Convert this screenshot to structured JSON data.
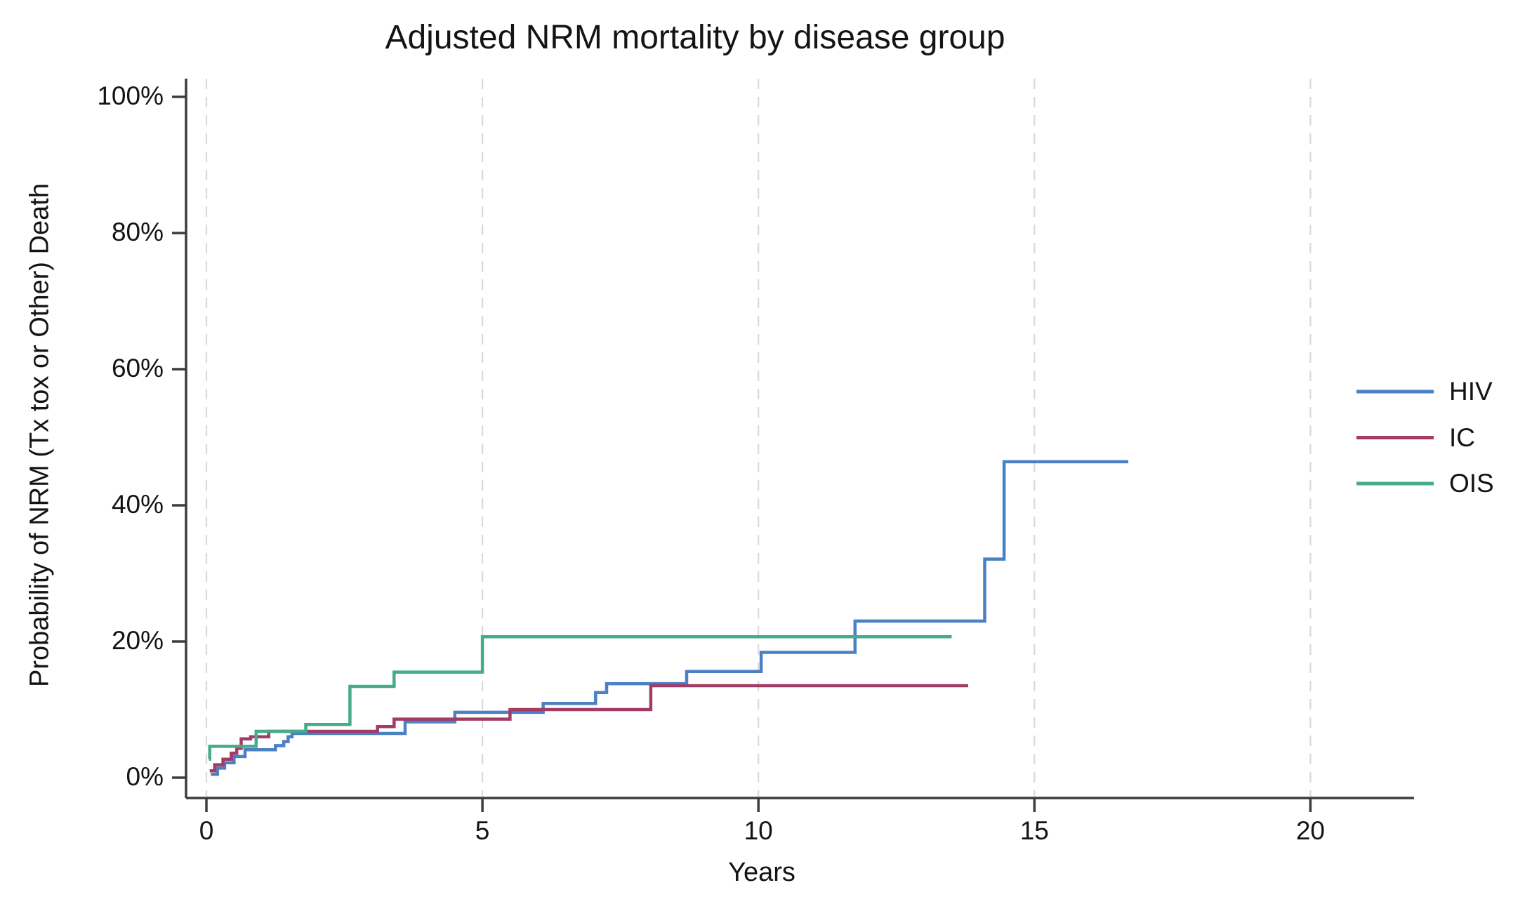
{
  "chart_data": {
    "type": "line",
    "subtype": "step",
    "title": "Adjusted NRM mortality by disease group",
    "xlabel": "Years",
    "ylabel": "Probability of NRM (Tx tox or Other) Death",
    "xlim": [
      0,
      20
    ],
    "ylim": [
      0,
      100
    ],
    "x_ticks": [
      0,
      5,
      10,
      15,
      20
    ],
    "y_ticks": [
      {
        "value": 0,
        "label": "0%"
      },
      {
        "value": 20,
        "label": "20%"
      },
      {
        "value": 40,
        "label": "40%"
      },
      {
        "value": 60,
        "label": "60%"
      },
      {
        "value": 80,
        "label": "80%"
      },
      {
        "value": 100,
        "label": "100%"
      }
    ],
    "grid": "vertical-dashed-only",
    "gridline_color": "#d9d9d9",
    "axis_color": "#3d3d3d",
    "legend_position": "right",
    "series": [
      {
        "name": "HIV",
        "color": "#4a80c4",
        "points": [
          [
            0.08,
            0.5
          ],
          [
            0.2,
            1.4
          ],
          [
            0.33,
            2.2
          ],
          [
            0.5,
            3.1
          ],
          [
            0.7,
            4.1
          ],
          [
            1.25,
            4.7
          ],
          [
            1.4,
            5.3
          ],
          [
            1.48,
            6.0
          ],
          [
            1.55,
            6.5
          ],
          [
            3.6,
            8.2
          ],
          [
            4.5,
            9.6
          ],
          [
            6.1,
            10.9
          ],
          [
            7.05,
            12.5
          ],
          [
            7.25,
            13.8
          ],
          [
            8.7,
            15.6
          ],
          [
            10.05,
            18.4
          ],
          [
            11.75,
            23.0
          ],
          [
            14.1,
            32.1
          ],
          [
            14.45,
            46.4
          ]
        ],
        "end_x": 16.7
      },
      {
        "name": "IC",
        "color": "#a23b66",
        "points": [
          [
            0.06,
            1.0
          ],
          [
            0.15,
            1.9
          ],
          [
            0.3,
            2.7
          ],
          [
            0.45,
            3.6
          ],
          [
            0.55,
            4.3
          ],
          [
            0.63,
            5.7
          ],
          [
            0.8,
            6.0
          ],
          [
            1.13,
            6.8
          ],
          [
            3.1,
            7.5
          ],
          [
            3.4,
            8.6
          ],
          [
            5.5,
            10.0
          ],
          [
            8.05,
            13.5
          ]
        ],
        "end_x": 13.8
      },
      {
        "name": "OIS",
        "color": "#45ab8a",
        "points": [
          [
            0.05,
            2.7
          ],
          [
            0.06,
            4.6
          ],
          [
            0.9,
            6.8
          ],
          [
            1.8,
            7.8
          ],
          [
            2.6,
            13.4
          ],
          [
            3.4,
            15.5
          ],
          [
            5.0,
            20.7
          ]
        ],
        "end_x": 13.5
      }
    ]
  }
}
